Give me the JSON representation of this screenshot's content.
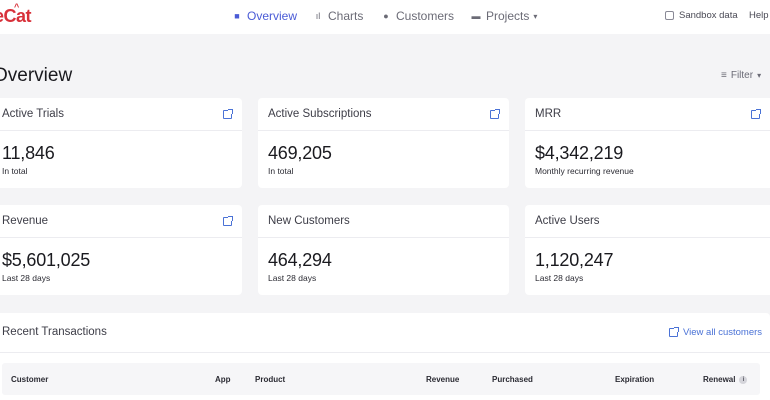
{
  "app": {
    "logo_text": "eCat"
  },
  "nav": {
    "items": [
      {
        "label": "Overview",
        "icon": "grid-icon",
        "active": true
      },
      {
        "label": "Charts",
        "icon": "bar-chart-icon",
        "active": false
      },
      {
        "label": "Customers",
        "icon": "person-icon",
        "active": false
      },
      {
        "label": "Projects",
        "icon": "folder-icon",
        "active": false
      }
    ],
    "sandbox_label": "Sandbox data",
    "help_label": "Help"
  },
  "page": {
    "title": "Overview",
    "filter_label": "Filter"
  },
  "cards": [
    {
      "title": "Active Trials",
      "value": "11,846",
      "sub": "In total",
      "has_link": true
    },
    {
      "title": "Active Subscriptions",
      "value": "469,205",
      "sub": "In total",
      "has_link": true
    },
    {
      "title": "MRR",
      "value": "$4,342,219",
      "sub": "Monthly recurring revenue",
      "has_link": true
    },
    {
      "title": "Revenue",
      "value": "$5,601,025",
      "sub": "Last 28 days",
      "has_link": true
    },
    {
      "title": "New Customers",
      "value": "464,294",
      "sub": "Last 28 days",
      "has_link": false
    },
    {
      "title": "Active Users",
      "value": "1,120,247",
      "sub": "Last 28 days",
      "has_link": false
    }
  ],
  "transactions": {
    "title": "Recent Transactions",
    "view_all_label": "View all customers",
    "columns": [
      "Customer",
      "App",
      "Product",
      "Revenue",
      "Purchased",
      "Expiration",
      "Renewal"
    ]
  },
  "colors": {
    "accent": "#4a5bd6",
    "brand": "#d8313a",
    "link": "#4a72d6"
  }
}
